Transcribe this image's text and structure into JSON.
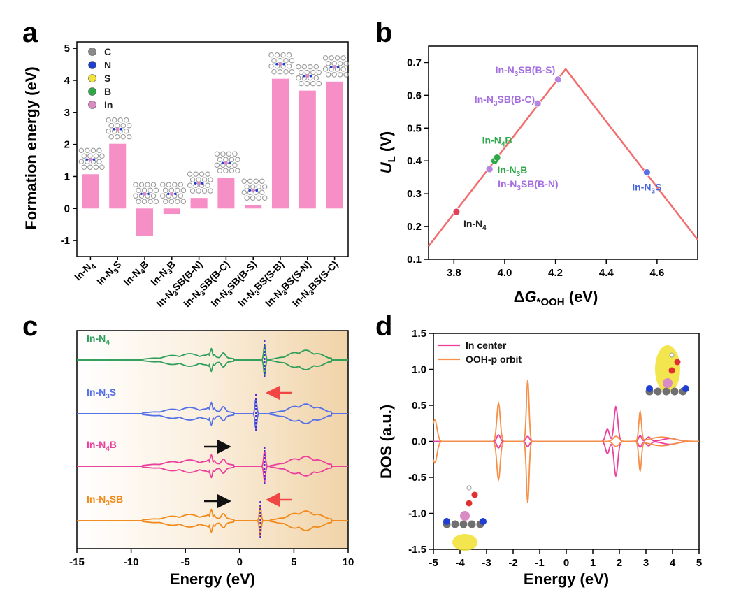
{
  "panels": {
    "a": "a",
    "b": "b",
    "c": "c",
    "d": "d"
  },
  "chart_data": [
    {
      "panel": "a",
      "type": "bar",
      "ylabel": "Formation energy (eV)",
      "ylim": [
        -1.5,
        5.2
      ],
      "yticks": [
        "5",
        "4",
        "3",
        "2",
        "1",
        "0",
        "-1"
      ],
      "categories": [
        "In-N4",
        "In-N3S",
        "In-N4B",
        "In-N3B",
        "In-N3SB(B-N)",
        "In-N3SB(B-C)",
        "In-N3SB(B-S)",
        "In-N3BS(S-B)",
        "In-N3BS(S-N)",
        "In-N3BS(S-C)"
      ],
      "category_labels": [
        {
          "pre": "In-N",
          "sub": "4",
          "post": ""
        },
        {
          "pre": "In-N",
          "sub": "3",
          "post": "S"
        },
        {
          "pre": "In-N",
          "sub": "4",
          "post": "B"
        },
        {
          "pre": "In-N",
          "sub": "3",
          "post": "B"
        },
        {
          "pre": "In-N",
          "sub": "3",
          "post": "SB(B-N)"
        },
        {
          "pre": "In-N",
          "sub": "3",
          "post": "SB(B-C)"
        },
        {
          "pre": "In-N",
          "sub": "3",
          "post": "SB(B-S)"
        },
        {
          "pre": "In-N",
          "sub": "3",
          "post": "BS(S-B)"
        },
        {
          "pre": "In-N",
          "sub": "3",
          "post": "BS(S-N)"
        },
        {
          "pre": "In-N",
          "sub": "3",
          "post": "BS(S-C)"
        }
      ],
      "values": [
        1.07,
        2.02,
        -0.85,
        -0.17,
        0.33,
        0.96,
        0.11,
        4.05,
        3.68,
        3.96
      ],
      "bar_color": "#f58fc6",
      "legend": [
        {
          "label": "C",
          "color": "#8a8a8a"
        },
        {
          "label": "N",
          "color": "#1f3fd1"
        },
        {
          "label": "S",
          "color": "#f2e23a"
        },
        {
          "label": "B",
          "color": "#2fa84a"
        },
        {
          "label": "In",
          "color": "#d98bc4"
        }
      ]
    },
    {
      "panel": "b",
      "type": "line",
      "xlabel": "ΔG*OOH (eV)",
      "ylabel": "UL (V)",
      "xlim": [
        3.7,
        4.76
      ],
      "ylim": [
        0.1,
        0.75
      ],
      "xticks": [
        "3.8",
        "4.0",
        "4.2",
        "4.4",
        "4.6"
      ],
      "yticks": [
        "0.7",
        "0.6",
        "0.5",
        "0.4",
        "0.3",
        "0.2",
        "0.1"
      ],
      "volcano": {
        "x": [
          3.7,
          4.24,
          4.76
        ],
        "y": [
          0.14,
          0.68,
          0.16
        ],
        "color": "#f26d6d"
      },
      "points": [
        {
          "name": "In-N4",
          "pre": "In-N",
          "sub": "4",
          "post": "",
          "x": 3.81,
          "y": 0.245,
          "color": "#e0405c",
          "label_color": "#222222"
        },
        {
          "name": "In-N3SB(B-N)",
          "pre": "In-N",
          "sub": "3",
          "post": "SB(B-N)",
          "x": 3.94,
          "y": 0.375,
          "color": "#b486e0",
          "label_color": "#a46ee0"
        },
        {
          "name": "In-N3B",
          "pre": "In-N",
          "sub": "3",
          "post": "B",
          "x": 3.96,
          "y": 0.4,
          "color": "#2fa84a",
          "label_color": "#2fa84a"
        },
        {
          "name": "In-N4B",
          "pre": "In-N",
          "sub": "4",
          "post": "B",
          "x": 3.97,
          "y": 0.41,
          "color": "#2fa84a",
          "label_color": "#2fa84a"
        },
        {
          "name": "In-N3SB(B-C)",
          "pre": "In-N",
          "sub": "3",
          "post": "SB(B-C)",
          "x": 4.13,
          "y": 0.575,
          "color": "#b486e0",
          "label_color": "#a46ee0"
        },
        {
          "name": "In-N3SB(B-S)",
          "pre": "In-N",
          "sub": "3",
          "post": "SB(B-S)",
          "x": 4.21,
          "y": 0.648,
          "color": "#b486e0",
          "label_color": "#a46ee0"
        },
        {
          "name": "In-N3S",
          "pre": "In-N",
          "sub": "3",
          "post": "S",
          "x": 4.56,
          "y": 0.365,
          "color": "#5a6ee6",
          "label_color": "#4a64e0"
        }
      ]
    },
    {
      "panel": "c",
      "type": "line",
      "xlabel": "Energy (eV)",
      "xlim": [
        -15,
        10
      ],
      "xticks": [
        "-15",
        "-10",
        "-5",
        "0",
        "5",
        "10"
      ],
      "fermi_marker_color": "#4b2bd6",
      "series": [
        {
          "name": "In-N4",
          "pre": "In-N",
          "sub": "4",
          "post": "",
          "color": "#2f9e5c",
          "peak_x": 2.3
        },
        {
          "name": "In-N3S",
          "pre": "In-N",
          "sub": "3",
          "post": "S",
          "color": "#5470e6",
          "peak_x": 1.5,
          "red_arrow": true
        },
        {
          "name": "In-N4B",
          "pre": "In-N",
          "sub": "4",
          "post": "B",
          "color": "#ea3f9c",
          "peak_x": 2.3,
          "black_arrow": true
        },
        {
          "name": "In-N3SB",
          "pre": "In-N",
          "sub": "3",
          "post": "SB",
          "color": "#f28a1a",
          "peak_x": 1.9,
          "red_arrow": true,
          "black_arrow": true
        }
      ]
    },
    {
      "panel": "d",
      "type": "line",
      "xlabel": "Energy (eV)",
      "ylabel": "DOS (a.u.)",
      "xlim": [
        -5,
        5
      ],
      "ylim": [
        -1.5,
        1.5
      ],
      "xticks": [
        "-5",
        "-4",
        "-3",
        "-2",
        "-1",
        "0",
        "1",
        "2",
        "3",
        "4",
        "5"
      ],
      "yticks": [
        "1.5",
        "1.0",
        "0.5",
        "0.0",
        "-0.5",
        "-1.0",
        "-1.5"
      ],
      "series": [
        {
          "name": "In center",
          "color": "#ea3f9c",
          "peaks": [
            {
              "x": -2.55,
              "h": 0.09,
              "w": 0.09
            },
            {
              "x": -1.45,
              "h": 0.07,
              "w": 0.09
            },
            {
              "x": 1.55,
              "h": 0.17,
              "w": 0.1
            },
            {
              "x": 1.87,
              "h": 0.48,
              "w": 0.1
            },
            {
              "x": 2.78,
              "h": 0.08,
              "w": 0.08
            },
            {
              "x": 3.1,
              "h": 0.06,
              "w": 0.12
            },
            {
              "x": 3.9,
              "h": 0.04,
              "w": 0.4
            }
          ]
        },
        {
          "name": "OOH-p orbit",
          "color": "#f5904a",
          "peaks": [
            {
              "x": -4.95,
              "h": 0.3,
              "w": 0.12
            },
            {
              "x": -2.55,
              "h": 0.53,
              "w": 0.09
            },
            {
              "x": -1.45,
              "h": 0.85,
              "w": 0.07
            },
            {
              "x": 1.87,
              "h": 0.07,
              "w": 0.15
            },
            {
              "x": 2.78,
              "h": 0.4,
              "w": 0.07
            },
            {
              "x": 3.6,
              "h": 0.06,
              "w": 0.6
            }
          ]
        }
      ]
    }
  ]
}
